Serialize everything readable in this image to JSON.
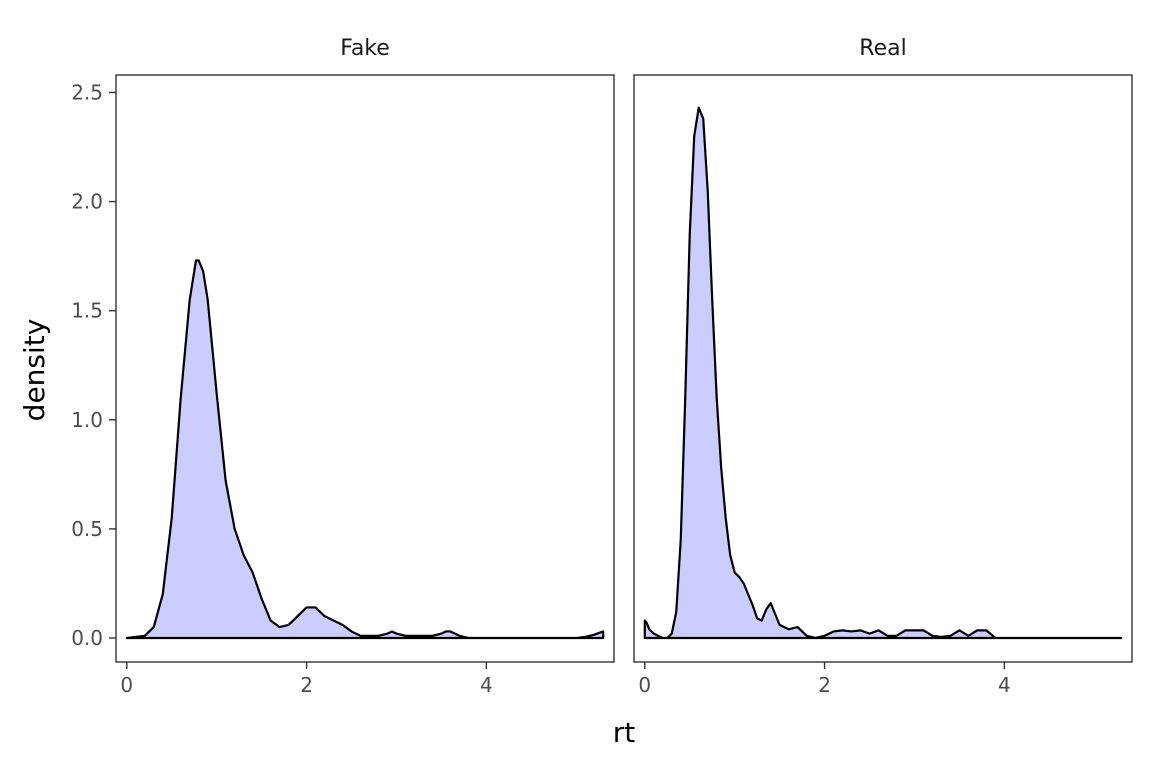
{
  "chart_data": {
    "type": "area",
    "xlabel": "rt",
    "ylabel": "density",
    "xlim": [
      -0.12,
      5.42
    ],
    "ylim": [
      -0.11,
      2.58
    ],
    "x_ticks": [
      "0",
      "2",
      "4"
    ],
    "y_ticks": [
      "0.0",
      "0.5",
      "1.0",
      "1.5",
      "2.0",
      "2.5"
    ],
    "grid": false,
    "fill_color": "#ccccff",
    "line_color": "#000000",
    "panels": [
      {
        "name": "Fake",
        "x": [
          0.0,
          0.2,
          0.3,
          0.4,
          0.5,
          0.6,
          0.7,
          0.77,
          0.8,
          0.85,
          0.9,
          1.0,
          1.1,
          1.2,
          1.3,
          1.4,
          1.5,
          1.6,
          1.7,
          1.8,
          1.9,
          2.0,
          2.1,
          2.2,
          2.3,
          2.4,
          2.5,
          2.6,
          2.7,
          2.8,
          2.9,
          2.95,
          3.0,
          3.1,
          3.2,
          3.3,
          3.4,
          3.5,
          3.55,
          3.6,
          3.65,
          3.7,
          3.8,
          4.0,
          4.5,
          5.0,
          5.1,
          5.2,
          5.3
        ],
        "y": [
          0.0,
          0.01,
          0.05,
          0.2,
          0.55,
          1.1,
          1.55,
          1.73,
          1.73,
          1.68,
          1.55,
          1.12,
          0.72,
          0.5,
          0.38,
          0.3,
          0.18,
          0.08,
          0.05,
          0.06,
          0.1,
          0.14,
          0.14,
          0.1,
          0.08,
          0.06,
          0.03,
          0.01,
          0.01,
          0.01,
          0.02,
          0.03,
          0.02,
          0.01,
          0.01,
          0.01,
          0.01,
          0.02,
          0.03,
          0.03,
          0.02,
          0.01,
          0.0,
          0.0,
          0.0,
          0.0,
          0.005,
          0.015,
          0.03
        ]
      },
      {
        "name": "Real",
        "x": [
          0.0,
          0.02,
          0.05,
          0.1,
          0.15,
          0.2,
          0.25,
          0.3,
          0.35,
          0.4,
          0.45,
          0.5,
          0.55,
          0.6,
          0.65,
          0.7,
          0.75,
          0.8,
          0.85,
          0.9,
          0.95,
          1.0,
          1.05,
          1.1,
          1.15,
          1.2,
          1.25,
          1.3,
          1.35,
          1.4,
          1.45,
          1.5,
          1.6,
          1.7,
          1.75,
          1.8,
          1.9,
          2.0,
          2.1,
          2.2,
          2.3,
          2.4,
          2.5,
          2.6,
          2.7,
          2.8,
          2.9,
          3.0,
          3.1,
          3.2,
          3.3,
          3.4,
          3.5,
          3.6,
          3.7,
          3.8,
          3.9,
          4.0,
          4.5,
          5.0,
          5.3
        ],
        "y": [
          0.08,
          0.07,
          0.04,
          0.02,
          0.01,
          0.0,
          0.0,
          0.02,
          0.12,
          0.45,
          1.1,
          1.85,
          2.3,
          2.43,
          2.38,
          2.05,
          1.55,
          1.1,
          0.78,
          0.55,
          0.38,
          0.3,
          0.28,
          0.25,
          0.2,
          0.15,
          0.09,
          0.08,
          0.13,
          0.16,
          0.11,
          0.06,
          0.04,
          0.05,
          0.03,
          0.01,
          0.0,
          0.01,
          0.03,
          0.035,
          0.03,
          0.035,
          0.02,
          0.035,
          0.01,
          0.01,
          0.035,
          0.035,
          0.035,
          0.01,
          0.005,
          0.01,
          0.035,
          0.01,
          0.035,
          0.035,
          0.0,
          0.0,
          0.0,
          0.0,
          0.0
        ]
      }
    ]
  }
}
